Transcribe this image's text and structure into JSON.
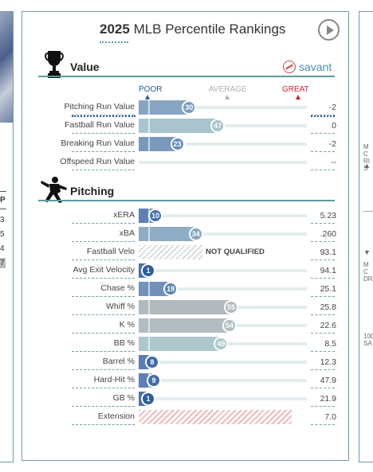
{
  "title": {
    "year": "2025",
    "rest": "MLB Percentile Rankings"
  },
  "savant_label": "savant",
  "legend": {
    "poor": "POOR",
    "average": "AVERAGE",
    "great": "GREAT"
  },
  "colors": {
    "poor": "#2a5aa0",
    "average": "#aab4b8",
    "great": "#c8272d",
    "accent": "#5b9aa0"
  },
  "left_strip": {
    "header": "P",
    "values": [
      "3",
      "5",
      "4",
      "7"
    ]
  },
  "right_strip": {
    "top_label": "MC RIS",
    "bottom_label": "MC DR",
    "low_label": "100 SA"
  },
  "sections": {
    "value": {
      "title": "Value",
      "icon": "trophy-icon",
      "rows": [
        {
          "label": "Pitching Run Value",
          "percentile": 30,
          "value": "-2"
        },
        {
          "label": "Fastball Run Value",
          "percentile": 47,
          "value": "0"
        },
        {
          "label": "Breaking Run Value",
          "percentile": 23,
          "value": "-2"
        },
        {
          "label": "Offspeed Run Value",
          "percentile": null,
          "value": "--"
        }
      ]
    },
    "pitching": {
      "title": "Pitching",
      "icon": "pitcher-icon",
      "not_qualified": "NOT QUALIFIED",
      "rows": [
        {
          "label": "xERA",
          "percentile": 10,
          "value": "5.23"
        },
        {
          "label": "xBA",
          "percentile": 34,
          "value": ".260"
        },
        {
          "label": "Fastball Velo",
          "percentile": null,
          "value": "93.1",
          "status": "not_qualified"
        },
        {
          "label": "Avg Exit Velocity",
          "percentile": 1,
          "value": "94.1"
        },
        {
          "label": "Chase %",
          "percentile": 19,
          "value": "25.1"
        },
        {
          "label": "Whiff %",
          "percentile": 55,
          "value": "25.8"
        },
        {
          "label": "K %",
          "percentile": 54,
          "value": "22.6"
        },
        {
          "label": "BB %",
          "percentile": 49,
          "value": "8.5"
        },
        {
          "label": "Barrel %",
          "percentile": 8,
          "value": "12.3"
        },
        {
          "label": "Hard-Hit %",
          "percentile": 9,
          "value": "47.9"
        },
        {
          "label": "GB %",
          "percentile": 1,
          "value": "21.9"
        },
        {
          "label": "Extension",
          "percentile": null,
          "value": "7.0",
          "status": "extension"
        }
      ]
    }
  }
}
